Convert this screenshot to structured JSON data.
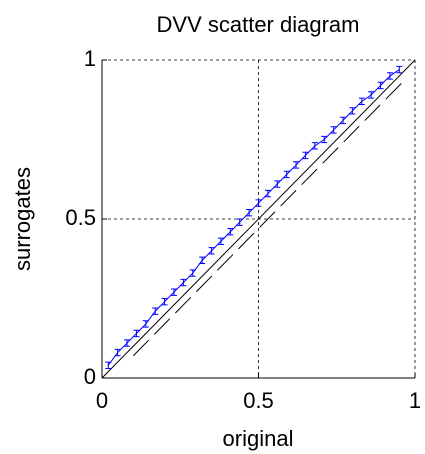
{
  "chart_data": {
    "type": "errorbar",
    "title": "DVV scatter diagram",
    "x_label": "original",
    "y_label": "surrogates",
    "x": [
      0.02,
      0.05,
      0.08,
      0.11,
      0.14,
      0.17,
      0.2,
      0.23,
      0.26,
      0.29,
      0.32,
      0.35,
      0.38,
      0.41,
      0.44,
      0.47,
      0.5,
      0.53,
      0.56,
      0.59,
      0.62,
      0.65,
      0.68,
      0.71,
      0.74,
      0.77,
      0.8,
      0.83,
      0.86,
      0.89,
      0.92,
      0.95
    ],
    "series": [
      {
        "color": "#0000ff",
        "values": [
          0.04,
          0.08,
          0.11,
          0.14,
          0.17,
          0.21,
          0.24,
          0.27,
          0.3,
          0.33,
          0.37,
          0.4,
          0.43,
          0.46,
          0.49,
          0.52,
          0.55,
          0.58,
          0.61,
          0.64,
          0.67,
          0.7,
          0.73,
          0.75,
          0.78,
          0.81,
          0.84,
          0.87,
          0.89,
          0.92,
          0.95,
          0.97
        ],
        "errors": [
          0.01,
          0.01,
          0.01,
          0.01,
          0.01,
          0.01,
          0.01,
          0.01,
          0.01,
          0.01,
          0.01,
          0.01,
          0.01,
          0.01,
          0.01,
          0.01,
          0.01,
          0.01,
          0.01,
          0.01,
          0.01,
          0.01,
          0.01,
          0.01,
          0.01,
          0.01,
          0.01,
          0.01,
          0.01,
          0.01,
          0.01,
          0.01
        ]
      }
    ],
    "xlim": [
      0,
      1
    ],
    "ylim": [
      0,
      1
    ],
    "xticks": [
      0,
      0.5,
      1
    ],
    "yticks": [
      0,
      0.5,
      1
    ],
    "grid": true
  }
}
